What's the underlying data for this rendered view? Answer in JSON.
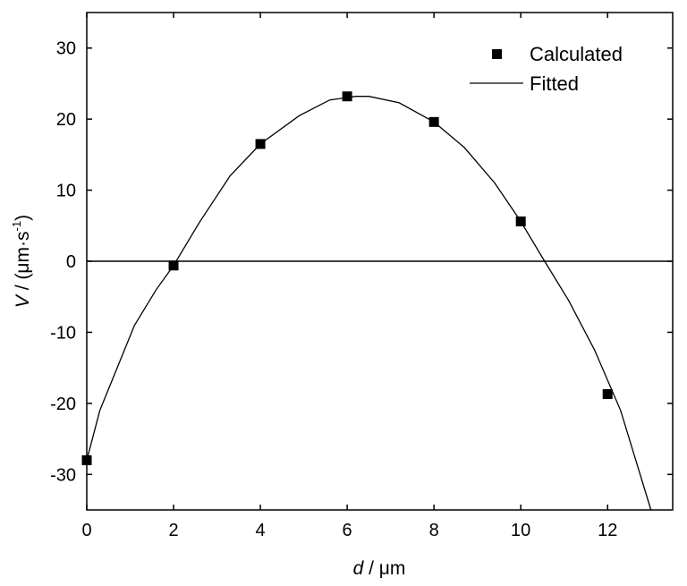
{
  "chart_data": {
    "type": "scatter",
    "title": "",
    "xlabel_var": "d",
    "xlabel_unit": " / μm",
    "ylabel_var": "V",
    "ylabel_prefix": " / (μm·s",
    "ylabel_sup": "-1",
    "ylabel_suffix": ")",
    "xlim": [
      0,
      13.5
    ],
    "ylim": [
      -35,
      35
    ],
    "xticks": [
      0,
      2,
      4,
      6,
      8,
      10,
      12
    ],
    "yticks": [
      -30,
      -20,
      -10,
      0,
      10,
      20,
      30
    ],
    "zero_line": true,
    "grid": false,
    "legend_position": "top-right",
    "series": [
      {
        "name": "Calculated",
        "kind": "markers",
        "marker": "square",
        "x": [
          0,
          2,
          4,
          6,
          8,
          10,
          12
        ],
        "y": [
          -28.0,
          -0.6,
          16.5,
          23.2,
          19.6,
          5.6,
          -18.7
        ]
      },
      {
        "name": "Fitted",
        "kind": "line",
        "x": [
          0,
          0.3,
          0.7,
          1.1,
          1.6,
          2.0,
          2.6,
          3.3,
          4.0,
          4.9,
          5.6,
          6.2,
          6.5,
          7.2,
          8.0,
          8.7,
          9.4,
          10.0,
          10.5,
          11.1,
          11.7,
          12.3,
          13.0
        ],
        "y": [
          -28.0,
          -21.0,
          -15.0,
          -9.0,
          -4.0,
          -0.6,
          5.5,
          12.0,
          16.5,
          20.5,
          22.7,
          23.2,
          23.2,
          22.3,
          19.6,
          16.0,
          11.0,
          5.6,
          0.5,
          -5.5,
          -12.5,
          -21.0,
          -35.0
        ]
      }
    ],
    "colors": {
      "axis": "#000000",
      "series": "#000000"
    }
  }
}
